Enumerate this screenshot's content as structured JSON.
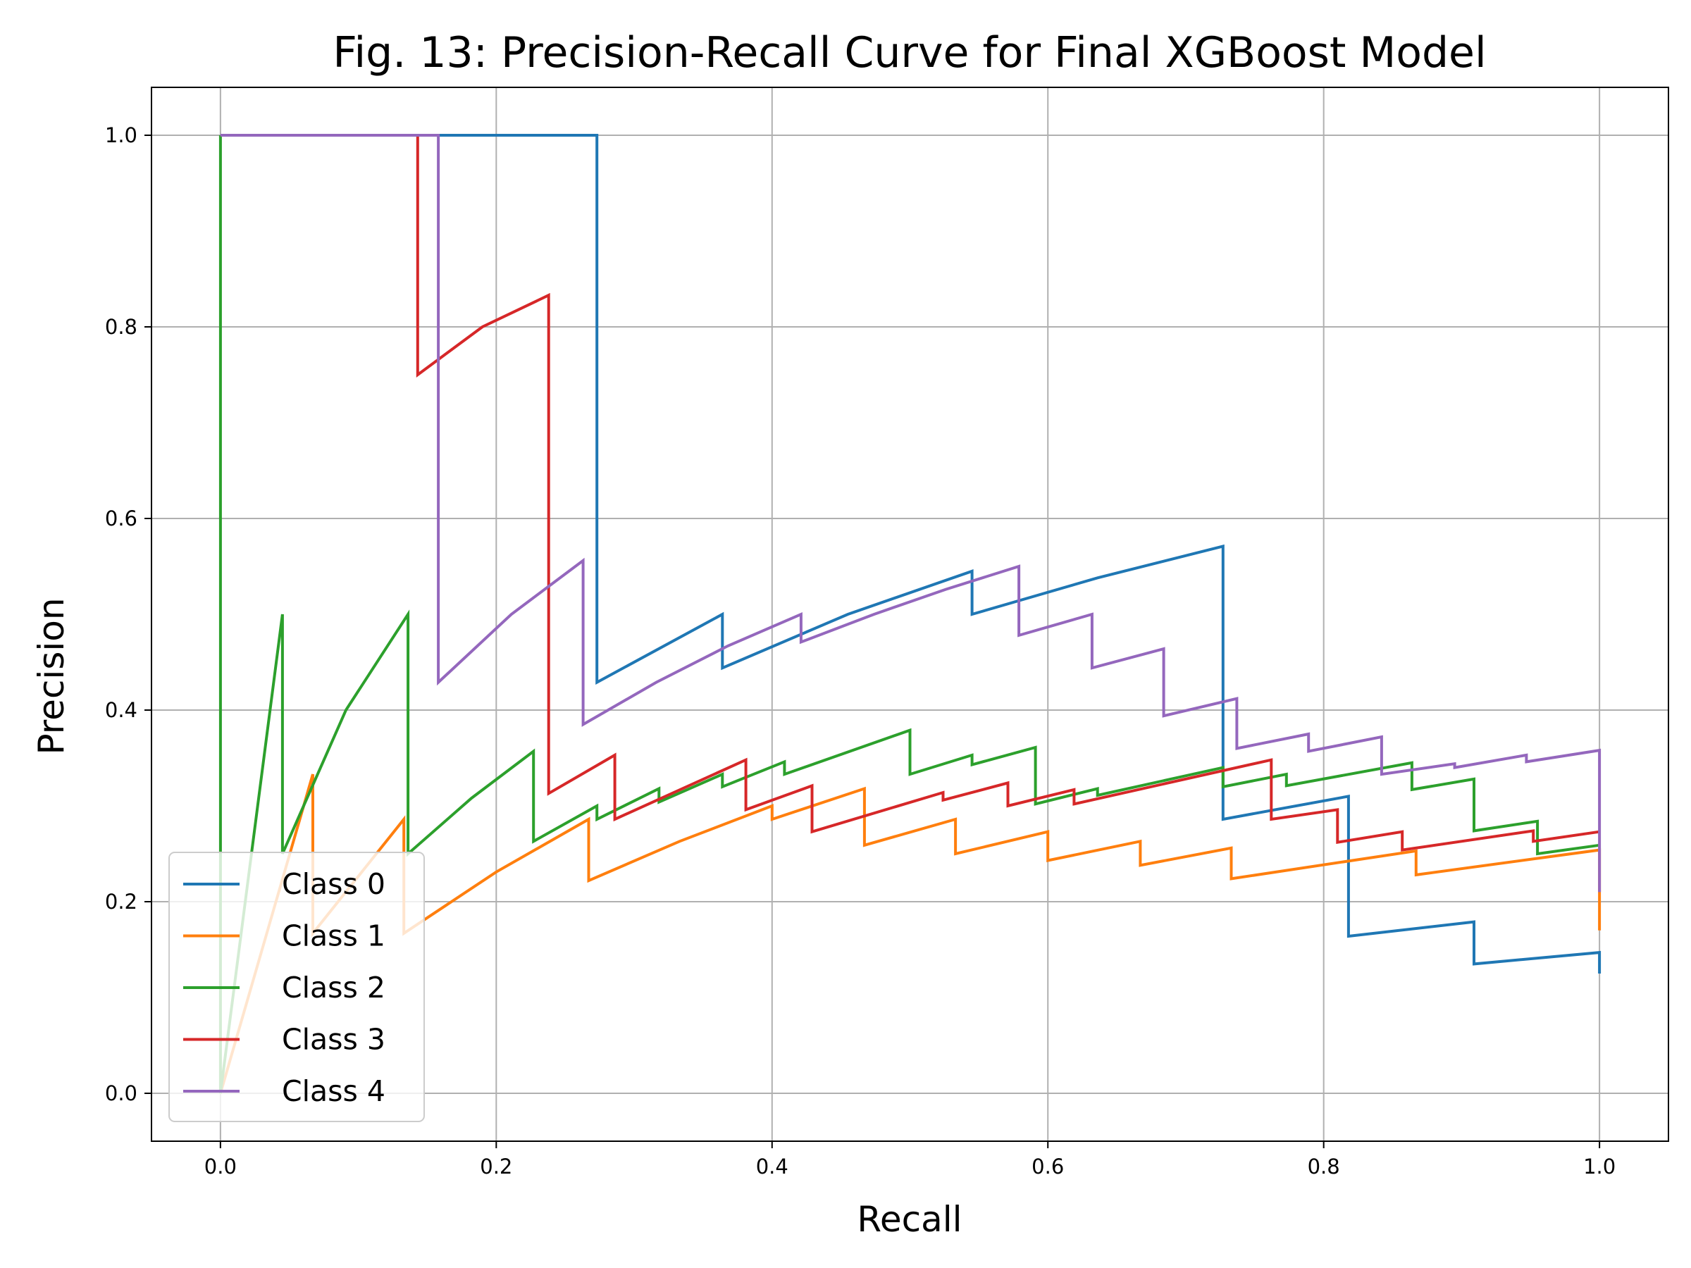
{
  "chart_data": {
    "type": "line",
    "title": "Fig. 13: Precision-Recall Curve for Final XGBoost Model",
    "xlabel": "Recall",
    "ylabel": "Precision",
    "xlim": [
      -0.05,
      1.05
    ],
    "ylim": [
      -0.05,
      1.05
    ],
    "xticks": [
      0.0,
      0.2,
      0.4,
      0.6,
      0.8,
      1.0
    ],
    "xtick_labels": [
      "0.0",
      "0.2",
      "0.4",
      "0.6",
      "0.8",
      "1.0"
    ],
    "yticks": [
      0.0,
      0.2,
      0.4,
      0.6,
      0.8,
      1.0
    ],
    "ytick_labels": [
      "0.0",
      "0.2",
      "0.4",
      "0.6",
      "0.8",
      "1.0"
    ],
    "grid": true,
    "legend_position": "lower-left",
    "series": [
      {
        "name": "Class 0",
        "color": "#1f77b4",
        "x": [
          1.0,
          1.0,
          0.909,
          0.909,
          0.818,
          0.818,
          0.818,
          0.727,
          0.727,
          0.636,
          0.545,
          0.545,
          0.455,
          0.364,
          0.364,
          0.273,
          0.273,
          0.0
        ],
        "y": [
          0.125,
          0.147,
          0.135,
          0.179,
          0.164,
          0.31,
          0.31,
          0.286,
          0.571,
          0.538,
          0.5,
          0.545,
          0.5,
          0.444,
          0.5,
          0.429,
          1.0,
          1.0
        ]
      },
      {
        "name": "Class 1",
        "color": "#ff7f0e",
        "x": [
          1.0,
          1.0,
          1.0,
          0.867,
          0.867,
          0.733,
          0.733,
          0.667,
          0.667,
          0.6,
          0.6,
          0.533,
          0.533,
          0.467,
          0.467,
          0.4,
          0.4,
          0.333,
          0.267,
          0.267,
          0.2,
          0.133,
          0.133,
          0.067,
          0.067,
          0.0
        ],
        "y": [
          0.17,
          0.214,
          0.254,
          0.228,
          0.253,
          0.224,
          0.256,
          0.238,
          0.263,
          0.243,
          0.273,
          0.25,
          0.286,
          0.259,
          0.318,
          0.286,
          0.3,
          0.263,
          0.222,
          0.286,
          0.231,
          0.167,
          0.286,
          0.167,
          0.333,
          0.0
        ]
      },
      {
        "name": "Class 2",
        "color": "#2ca02c",
        "x": [
          1.0,
          0.955,
          0.955,
          0.909,
          0.909,
          0.864,
          0.864,
          0.773,
          0.773,
          0.727,
          0.727,
          0.636,
          0.636,
          0.591,
          0.591,
          0.545,
          0.545,
          0.5,
          0.5,
          0.409,
          0.409,
          0.364,
          0.364,
          0.318,
          0.318,
          0.273,
          0.273,
          0.227,
          0.227,
          0.182,
          0.136,
          0.136,
          0.091,
          0.045,
          0.045,
          0.0,
          0.0
        ],
        "y": [
          0.259,
          0.25,
          0.284,
          0.274,
          0.328,
          0.317,
          0.345,
          0.321,
          0.333,
          0.32,
          0.34,
          0.311,
          0.318,
          0.302,
          0.361,
          0.343,
          0.353,
          0.333,
          0.379,
          0.333,
          0.346,
          0.32,
          0.333,
          0.304,
          0.318,
          0.286,
          0.3,
          0.263,
          0.357,
          0.308,
          0.25,
          0.5,
          0.4,
          0.25,
          0.5,
          0.0,
          1.0
        ]
      },
      {
        "name": "Class 3",
        "color": "#d62728",
        "x": [
          1.0,
          0.952,
          0.952,
          0.857,
          0.857,
          0.81,
          0.81,
          0.762,
          0.762,
          0.619,
          0.619,
          0.571,
          0.571,
          0.524,
          0.524,
          0.429,
          0.429,
          0.381,
          0.381,
          0.286,
          0.286,
          0.238,
          0.238,
          0.19,
          0.143,
          0.143
        ],
        "y": [
          0.273,
          0.263,
          0.274,
          0.254,
          0.273,
          0.262,
          0.296,
          0.286,
          0.348,
          0.302,
          0.317,
          0.3,
          0.324,
          0.306,
          0.314,
          0.273,
          0.321,
          0.296,
          0.348,
          0.286,
          0.353,
          0.313,
          0.833,
          0.8,
          0.75,
          1.0
        ]
      },
      {
        "name": "Class 4",
        "color": "#9467bd",
        "x": [
          1.0,
          1.0,
          0.947,
          0.947,
          0.895,
          0.895,
          0.842,
          0.842,
          0.789,
          0.789,
          0.737,
          0.737,
          0.684,
          0.684,
          0.632,
          0.632,
          0.579,
          0.579,
          0.526,
          0.474,
          0.421,
          0.421,
          0.368,
          0.316,
          0.263,
          0.263,
          0.211,
          0.158,
          0.158,
          0.0
        ],
        "y": [
          0.21,
          0.358,
          0.346,
          0.353,
          0.34,
          0.344,
          0.333,
          0.372,
          0.357,
          0.375,
          0.36,
          0.412,
          0.394,
          0.464,
          0.444,
          0.5,
          0.478,
          0.55,
          0.526,
          0.5,
          0.471,
          0.5,
          0.467,
          0.429,
          0.385,
          0.556,
          0.5,
          0.429,
          1.0,
          1.0
        ]
      }
    ]
  }
}
